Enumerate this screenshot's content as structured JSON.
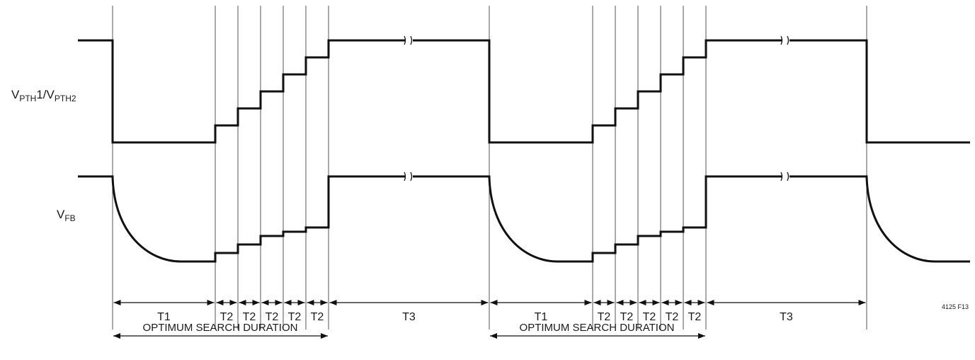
{
  "signals": {
    "top": {
      "main": "V",
      "sub1": "PTH",
      "mid": "1/V",
      "sub2": "PTH2"
    },
    "bottom": {
      "main": "V",
      "sub": "FB"
    }
  },
  "intervals": [
    "T1",
    "T2",
    "T2",
    "T2",
    "T2",
    "T2",
    "T3",
    "T1",
    "T2",
    "T2",
    "T2",
    "T2",
    "T2",
    "T3"
  ],
  "search_duration_label": "OPTIMUM SEARCH DURATION",
  "figure_code": "4125 F13"
}
